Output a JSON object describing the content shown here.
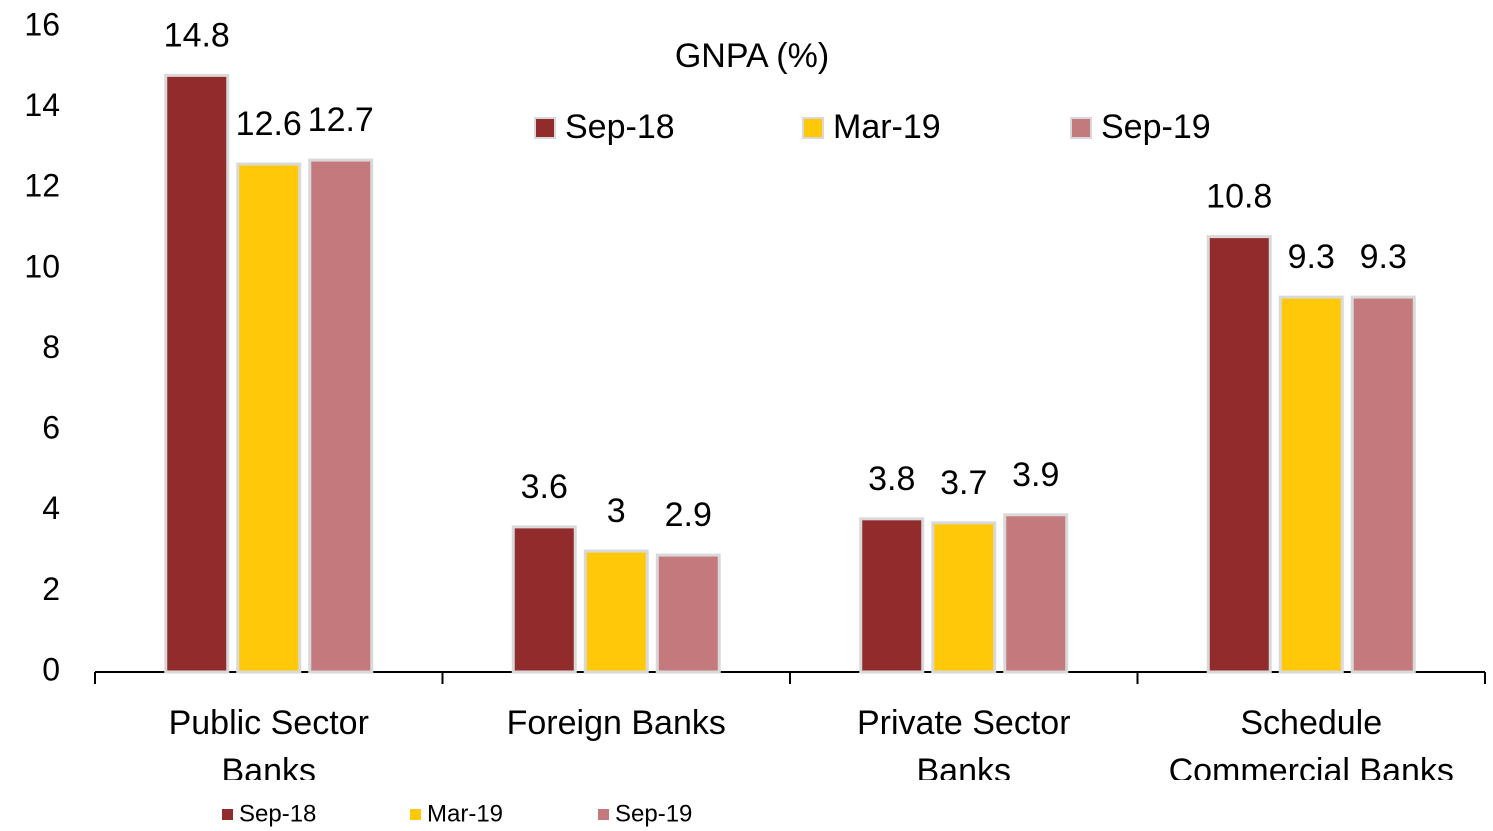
{
  "chart_data": {
    "type": "bar",
    "title": "GNPA (%)",
    "categories": [
      "Public Sector Banks",
      "Foreign Banks",
      "Private Sector Banks",
      "Schedule Commercial Banks"
    ],
    "series": [
      {
        "name": "Sep-18",
        "color": "#922b2b",
        "values": [
          14.8,
          3.6,
          3.8,
          10.8
        ]
      },
      {
        "name": "Mar-19",
        "color": "#ffc90a",
        "values": [
          12.6,
          3,
          3.7,
          9.3
        ]
      },
      {
        "name": "Sep-19",
        "color": "#c47a7c",
        "values": [
          12.7,
          2.9,
          3.9,
          9.3
        ]
      }
    ],
    "ylim": [
      0,
      16
    ],
    "yticks": [
      0,
      2,
      4,
      6,
      8,
      10,
      12,
      14,
      16
    ],
    "grid": false
  }
}
